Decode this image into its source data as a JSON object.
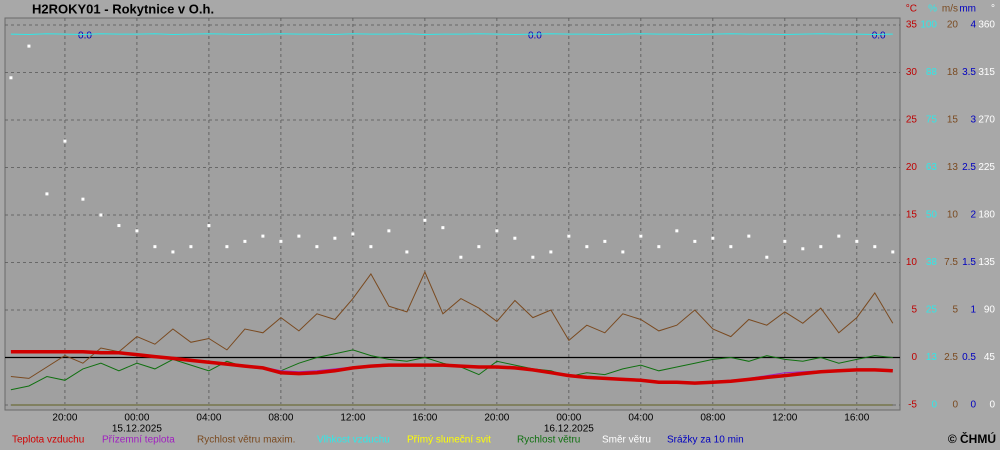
{
  "chart_data": {
    "type": "line",
    "title": "H2ROKY01 - Rokytnice v O.h.",
    "copyright": "© ČHMÚ",
    "x": [
      -7,
      -6,
      -5,
      -4,
      -3,
      -2,
      -1,
      0,
      1,
      2,
      3,
      4,
      5,
      6,
      7,
      8,
      9,
      10,
      11,
      12,
      13,
      14,
      15,
      16,
      17,
      18,
      19,
      20,
      21,
      22,
      23,
      24,
      25,
      26,
      27,
      28,
      29,
      30,
      31,
      32,
      33,
      34,
      35,
      36,
      37,
      38,
      39,
      40,
      41,
      42
    ],
    "xlim": [
      -7.33,
      42.4
    ],
    "xticks": [
      {
        "value": -4,
        "label": "20:00"
      },
      {
        "value": 0,
        "label": "00:00"
      },
      {
        "value": 4,
        "label": "04:00"
      },
      {
        "value": 8,
        "label": "08:00"
      },
      {
        "value": 12,
        "label": "12:00"
      },
      {
        "value": 16,
        "label": "16:00"
      },
      {
        "value": 20,
        "label": "20:00"
      },
      {
        "value": 24,
        "label": "00:00"
      },
      {
        "value": 28,
        "label": "04:00"
      },
      {
        "value": 32,
        "label": "08:00"
      },
      {
        "value": 36,
        "label": "12:00"
      },
      {
        "value": 40,
        "label": "16:00"
      }
    ],
    "date_labels": [
      {
        "value": 0,
        "label": "15.12.2025"
      },
      {
        "value": 24,
        "label": "16.12.2025"
      }
    ],
    "annotations": [
      {
        "value": -2.5,
        "label": "0.0"
      },
      {
        "value": 22.5,
        "label": "0.0"
      },
      {
        "value": 41.6,
        "label": "0.0"
      }
    ],
    "grid": true,
    "axes": [
      {
        "unit": "°C",
        "color": "#c00000",
        "ylim": [
          -5,
          35
        ],
        "yticks": [
          -5,
          0,
          5,
          10,
          15,
          20,
          25,
          30,
          35
        ]
      },
      {
        "unit": "%",
        "color": "#30e8e8",
        "ylim": [
          0,
          100
        ],
        "yticks": [
          0,
          {
            "value": 12.5,
            "label": "13"
          },
          25,
          {
            "value": 37.5,
            "label": "38"
          },
          50,
          {
            "value": 62.5,
            "label": "63"
          },
          75,
          {
            "value": 87.5,
            "label": "88"
          },
          100
        ]
      },
      {
        "unit": "m/s",
        "color": "#7a4a20",
        "ylim": [
          0,
          20
        ],
        "yticks": [
          0,
          2.5,
          5,
          7.5,
          10,
          {
            "value": 12.5,
            "label": "13"
          },
          15,
          {
            "value": 17.5,
            "label": "18"
          },
          20
        ]
      },
      {
        "unit": "mm",
        "color": "#0000c0",
        "ylim": [
          0,
          4
        ],
        "yticks": [
          0,
          0.5,
          1,
          1.5,
          2,
          2.5,
          3,
          3.5,
          4
        ]
      },
      {
        "unit": "°",
        "color": "#ffffff",
        "ylim": [
          0,
          360
        ],
        "yticks": [
          0,
          45,
          90,
          135,
          180,
          225,
          270,
          315,
          360
        ]
      }
    ],
    "series": [
      {
        "name": "Teplota vzduchu",
        "color": "#d00000",
        "axis": 0,
        "style": "thick",
        "values": [
          0.6,
          0.6,
          0.6,
          0.6,
          0.6,
          0.5,
          0.5,
          0.3,
          0.1,
          -0.1,
          -0.3,
          -0.5,
          -0.7,
          -0.9,
          -1.1,
          -1.6,
          -1.7,
          -1.6,
          -1.4,
          -1.1,
          -0.9,
          -0.8,
          -0.8,
          -0.8,
          -0.8,
          -0.9,
          -1.0,
          -1.0,
          -1.1,
          -1.3,
          -1.6,
          -1.9,
          -2.1,
          -2.2,
          -2.3,
          -2.4,
          -2.6,
          -2.6,
          -2.7,
          -2.6,
          -2.5,
          -2.3,
          -2.1,
          -1.9,
          -1.7,
          -1.5,
          -1.4,
          -1.3,
          -1.3,
          -1.4
        ]
      },
      {
        "name": "Přízemní teplota",
        "color": "#a020c0",
        "axis": 0,
        "style": "line",
        "values": [
          0.7,
          0.7,
          0.6,
          0.6,
          0.6,
          0.5,
          0.5,
          0.3,
          0.1,
          -0.1,
          -0.3,
          -0.4,
          -0.6,
          -0.8,
          -1.0,
          -1.4,
          -1.5,
          -1.4,
          -1.2,
          -1.0,
          -0.8,
          -0.7,
          -0.7,
          -0.8,
          -0.8,
          -0.9,
          -1.0,
          -1.0,
          -1.1,
          -1.3,
          -1.5,
          -1.8,
          -2.0,
          -2.1,
          -2.2,
          -2.3,
          -2.5,
          -2.5,
          -2.6,
          -2.5,
          -2.4,
          -2.2,
          -1.9,
          -1.6,
          -1.5,
          -1.4,
          -1.3,
          -1.3,
          -1.3,
          -1.3
        ]
      },
      {
        "name": "Rychlost větru maxim.",
        "color": "#7a4a20",
        "axis": 2,
        "style": "line",
        "values": [
          1.5,
          1.4,
          2.0,
          2.6,
          2.2,
          3.0,
          2.8,
          3.6,
          3.2,
          4.0,
          3.3,
          3.5,
          2.9,
          4.0,
          3.8,
          4.6,
          3.9,
          4.8,
          4.5,
          5.6,
          6.9,
          5.2,
          4.9,
          7.0,
          4.8,
          5.6,
          5.1,
          4.4,
          5.5,
          4.6,
          5.0,
          3.4,
          4.2,
          3.8,
          4.8,
          4.5,
          3.9,
          4.2,
          5.0,
          4.0,
          3.6,
          4.5,
          4.2,
          4.9,
          4.3,
          5.1,
          3.8,
          4.6,
          5.9,
          4.3
        ]
      },
      {
        "name": "Vlhkost vzduchu",
        "color": "#30e8e8",
        "axis": 1,
        "style": "line",
        "values": [
          97.6,
          97.5,
          97.7,
          97.6,
          97.5,
          97.7,
          97.6,
          97.6,
          97.7,
          97.5,
          97.6,
          97.7,
          97.6,
          97.5,
          97.6,
          97.7,
          97.6,
          97.6,
          97.5,
          97.7,
          97.6,
          97.6,
          97.7,
          97.5,
          97.6,
          97.6,
          97.7,
          97.6,
          97.5,
          97.6,
          97.7,
          97.6,
          97.6,
          97.5,
          97.6,
          97.7,
          97.6,
          97.6,
          97.5,
          97.6,
          97.7,
          97.6,
          97.6,
          97.5,
          97.6,
          97.7,
          97.6,
          97.6,
          97.5,
          97.6
        ]
      },
      {
        "name": "Přímý sluneční svit",
        "color": "#ffff00",
        "axis": 2,
        "style": "line",
        "values": [
          0,
          0,
          0,
          0,
          0,
          0,
          0,
          0,
          0,
          0,
          0,
          0,
          0,
          0,
          0,
          0,
          0,
          0,
          0,
          0,
          0,
          0,
          0,
          0,
          0,
          0,
          0,
          0,
          0,
          0,
          0,
          0,
          0,
          0,
          0,
          0,
          0,
          0,
          0,
          0,
          0,
          0,
          0,
          0,
          0,
          0,
          0,
          0,
          0,
          0
        ]
      },
      {
        "name": "Rychlost větru",
        "color": "#107010",
        "axis": 2,
        "style": "line",
        "values": [
          0.8,
          1.0,
          1.5,
          1.3,
          1.9,
          2.2,
          1.8,
          2.2,
          1.9,
          2.4,
          2.1,
          1.8,
          2.3,
          2.0,
          1.9,
          1.8,
          2.2,
          2.5,
          2.7,
          2.9,
          2.6,
          2.4,
          2.3,
          2.5,
          2.2,
          2.0,
          1.6,
          2.3,
          2.1,
          1.9,
          1.8,
          1.5,
          1.7,
          1.6,
          1.9,
          2.1,
          1.8,
          2.0,
          2.2,
          2.4,
          2.5,
          2.3,
          2.6,
          2.4,
          2.3,
          2.5,
          2.2,
          2.4,
          2.6,
          2.5
        ]
      },
      {
        "name": "Směr větru",
        "color": "#ffffff",
        "axis": 4,
        "style": "dots",
        "values": [
          310,
          340,
          200,
          250,
          195,
          180,
          170,
          165,
          150,
          145,
          150,
          170,
          150,
          155,
          160,
          155,
          160,
          150,
          158,
          162,
          150,
          165,
          145,
          175,
          168,
          140,
          150,
          165,
          158,
          140,
          145,
          160,
          150,
          155,
          145,
          160,
          150,
          165,
          155,
          158,
          150,
          160,
          140,
          155,
          148,
          150,
          160,
          155,
          150,
          145
        ]
      },
      {
        "name": "Srážky za 10 min",
        "color": "#0000c0",
        "axis": 3,
        "style": "line",
        "values": [
          0,
          0,
          0,
          0,
          0,
          0,
          0,
          0,
          0,
          0,
          0,
          0,
          0,
          0,
          0,
          0,
          0,
          0,
          0,
          0,
          0,
          0,
          0,
          0,
          0,
          0,
          0,
          0,
          0,
          0,
          0,
          0,
          0,
          0,
          0,
          0,
          0,
          0,
          0,
          0,
          0,
          0,
          0,
          0,
          0,
          0,
          0,
          0,
          0,
          0
        ]
      }
    ]
  }
}
